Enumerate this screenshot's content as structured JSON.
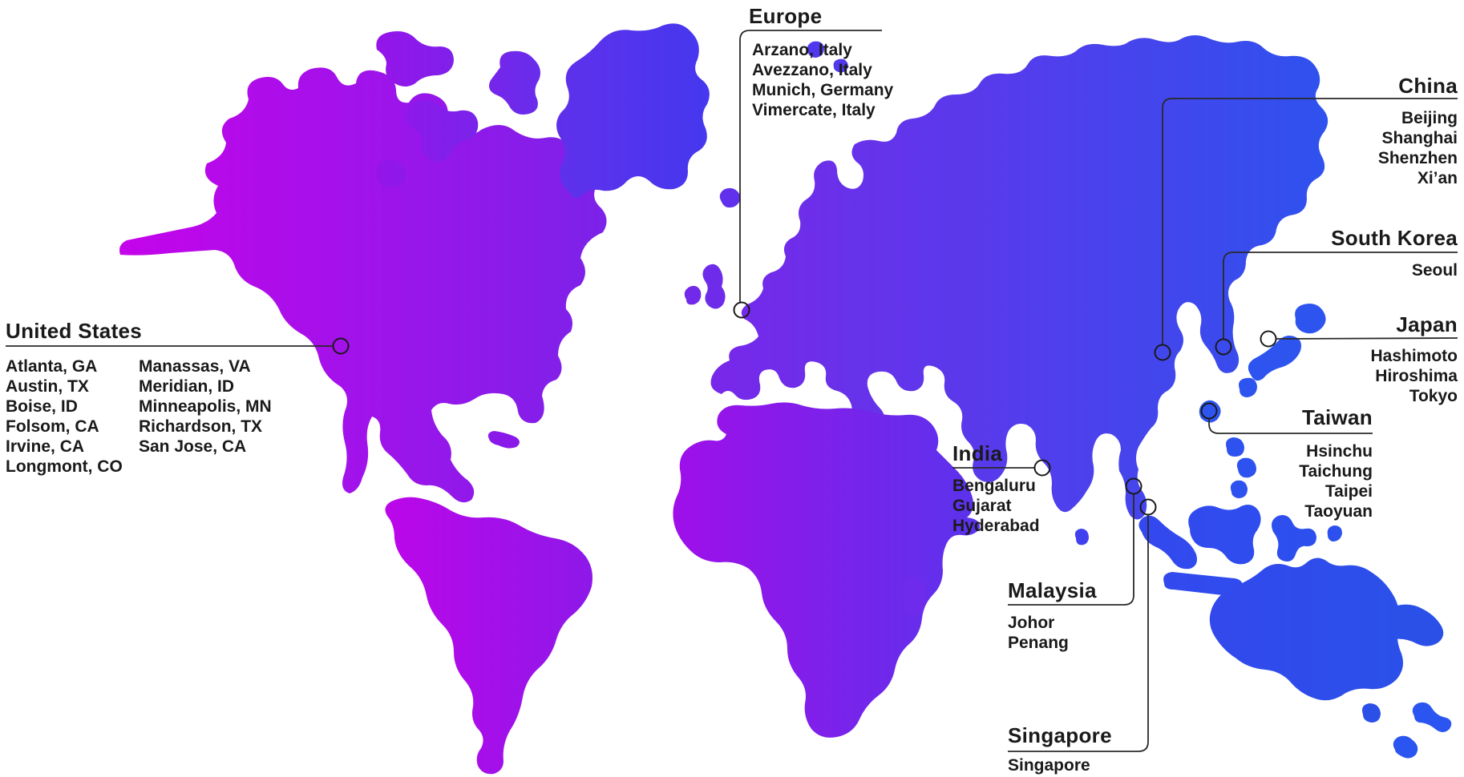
{
  "map": {
    "description": "Stylized world map with magenta-to-blue gradient showing global office locations",
    "colors": {
      "gradient_left": "#C603EA",
      "gradient_mid": "#7B2BE9",
      "gradient_right": "#2B50E8",
      "text": "#1a1a1a",
      "leader_line": "#2a2a2a",
      "background": "#ffffff"
    }
  },
  "regions": {
    "united_states": {
      "title": "United States",
      "columns": [
        [
          "Atlanta, GA",
          "Austin, TX",
          "Boise, ID",
          "Folsom, CA",
          "Irvine, CA",
          "Longmont, CO"
        ],
        [
          "Manassas, VA",
          "Meridian, ID",
          "Minneapolis, MN",
          "Richardson, TX",
          "San Jose, CA"
        ]
      ]
    },
    "europe": {
      "title": "Europe",
      "cities": [
        "Arzano, Italy",
        "Avezzano, Italy",
        "Munich, Germany",
        "Vimercate, Italy"
      ]
    },
    "china": {
      "title": "China",
      "cities": [
        "Beijing",
        "Shanghai",
        "Shenzhen",
        "Xi’an"
      ]
    },
    "south_korea": {
      "title": "South Korea",
      "cities": [
        "Seoul"
      ]
    },
    "japan": {
      "title": "Japan",
      "cities": [
        "Hashimoto",
        "Hiroshima",
        "Tokyo"
      ]
    },
    "taiwan": {
      "title": "Taiwan",
      "cities": [
        "Hsinchu",
        "Taichung",
        "Taipei",
        "Taoyuan"
      ]
    },
    "india": {
      "title": "India",
      "cities": [
        "Bengaluru",
        "Gujarat",
        "Hyderabad"
      ]
    },
    "malaysia": {
      "title": "Malaysia",
      "cities": [
        "Johor",
        "Penang"
      ]
    },
    "singapore": {
      "title": "Singapore",
      "cities": [
        "Singapore"
      ]
    }
  }
}
